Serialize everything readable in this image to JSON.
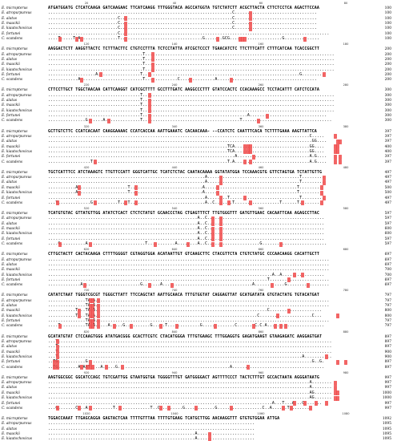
{
  "species": [
    "E. micropterus",
    "E. atropurpureus",
    "E. alatus",
    "E. maackii",
    "E. kiautschovicus",
    "E. fortunei",
    "C. scandens"
  ],
  "blocks": [
    {
      "ticks": [
        "20",
        "40",
        "60",
        "80"
      ],
      "rows": [
        {
          "seq": "ATGATGGATG CTCATCAAGA GATCAAGAAC TTCATCAAGG TTTGGGTACA AGCCATGGTA TGTCTATCTT ACGCTTACTA CTTCTCCTCA AGACTTCCAA",
          "num": "100"
        },
        {
          "seq": "..........................................................................C.................................",
          "num": "100"
        },
        {
          "seq": "............................C.............................................C.................................",
          "num": "100"
        },
        {
          "seq": "............................C.............................................C.................................",
          "num": "100"
        },
        {
          "seq": "............................C.............................................C.................................",
          "num": "100"
        },
        {
          "seq": "............................C....................................................................................",
          "num": "100"
        },
        {
          "seq": "....T.....T.A...............T.................................G.......GCG.....................G..............",
          "num": "100"
        }
      ]
    },
    {
      "ticks": [
        "120",
        "140",
        "160",
        "180"
      ],
      "rows": [
        {
          "seq": "AAGGACTCTT AAGGTTACTC TCTTTACTTC CTGTCCTTTA TCTCCTATTA ATCGCTCCCT TGAACATCTC TTCTTTCATT CTTTCATCAA TCACCGGCTT",
          "num": "200"
        },
        {
          "seq": "......................................T............................................................................",
          "num": "200"
        },
        {
          "seq": "......................................T............................................................................",
          "num": "200"
        },
        {
          "seq": "......................................T............................................................................",
          "num": "200"
        },
        {
          "seq": "......................................T............................................................................",
          "num": "200"
        },
        {
          "seq": "...................A.................T...............................................................G.........",
          "num": "200"
        },
        {
          "seq": "............A.........................T.............C..............A........................................",
          "num": "200"
        }
      ]
    },
    {
      "ticks": [
        "220",
        "240",
        "260",
        "280"
      ],
      "rows": [
        {
          "seq": "CTTCCTTGCT TGGCTAACAA CATTCAAGGT CATCGCTTTT GCCTTTGATC AAGGCCCTTT GTATCCACTC CCACAAAGCC TCCTACATTT CATCTCCATA",
          "num": "300"
        },
        {
          "seq": ".....................................T.............................................................................",
          "num": "300"
        },
        {
          "seq": ".....................................T.............................................................................",
          "num": "300"
        },
        {
          "seq": ".....................................T.............................................................................",
          "num": "300"
        },
        {
          "seq": ".....................................T.............................................................................",
          "num": "300"
        },
        {
          "seq": ".....................................T..........................................A...............................",
          "num": "300"
        },
        {
          "seq": "...............G......A..............T.......................................T....................................",
          "num": "300"
        }
      ]
    },
    {
      "ticks": [
        "320",
        "340",
        "360",
        "380"
      ],
      "rows": [
        {
          "seq": "GCTTGTCTTC CCATCACAAT CAAGGAAAAC CCATCACCAA AATTGAAATC CACAACAAA- --CCATCTC CAATTTCACA TCTTTTGAAA AAGTTATTCA",
          "num": "397"
        },
        {
          "seq": ".........................................................................................................C.....",
          "num": "397"
        },
        {
          "seq": "..........................................................................................................GG....",
          "num": "397"
        },
        {
          "seq": "........................................................................TCA..............................GG....",
          "num": "400"
        },
        {
          "seq": "........................................................................TCA..............................GG....",
          "num": "400"
        },
        {
          "seq": "...........................................................................A.............................A.G....",
          "num": "397"
        },
        {
          "seq": ".................T......................................................T.A..............................A.G....",
          "num": "397"
        }
      ]
    },
    {
      "ticks": [
        "420",
        "440",
        "460",
        "480"
      ],
      "rows": [
        {
          "seq": "TGCTCATTTCC ATCTAAAGTC TTGTTCCATT GGGTCATTGC TCATCTCTAC CAATACAAAA GGTATATGGA TCCAAACGTG GTTCTAGTGA TCTATTGTTG",
          "num": "497"
        },
        {
          "seq": "...............................................................A.....................................T.........",
          "num": "497"
        },
        {
          "seq": "...............................................................A.....................................T.........",
          "num": "497"
        },
        {
          "seq": "...........A....................T.............................A.....................................T.........",
          "num": "500"
        },
        {
          "seq": "...........A....................T.............................A.....................................T.........",
          "num": "500"
        },
        {
          "seq": "...............................................................A........T............................T.........",
          "num": "497"
        },
        {
          "seq": "...T.............G..........T...T..............................A..C.......T..................T......T.........",
          "num": "497"
        }
      ]
    },
    {
      "ticks": [
        "520",
        "540",
        "560",
        "580"
      ],
      "rows": [
        {
          "seq": "TCATGTGTAC GTTATGTTGG ATATCTCACT CTCTCTATGT GCAACCCTAG CTGAGTTTCT TTGTGGGTTT GATGTTGAAC CACAATTCAA AGAGCCTTAC",
          "num": "597"
        },
        {
          "seq": "............................................................A..C...............................................",
          "num": "597"
        },
        {
          "seq": "............................................................A..C...............................................",
          "num": "597"
        },
        {
          "seq": "............................................................A..C...............................................",
          "num": "600"
        },
        {
          "seq": "............................................................A..C...............................................",
          "num": "600"
        },
        {
          "seq": "............................................................A..C...............................................",
          "num": "597"
        },
        {
          "seq": "....G..........A.......................T...........A........A..C.....................G..........................",
          "num": "597"
        }
      ]
    },
    {
      "ticks": [
        "620",
        "640",
        "660",
        "680"
      ],
      "rows": [
        {
          "seq": "CTTGCTACTT CACTACAAGA CTTTTGGGGT CGTAGGTGGA ACATAATTGT GTCAAGCTTC CTACGTTCTA CTGTCTATGC CCCAACAAGG CACATTGCTT",
          "num": "697"
        },
        {
          "seq": ".................................................................................................................",
          "num": "697"
        },
        {
          "seq": ".................................................................................................................",
          "num": "697"
        },
        {
          "seq": ".................................................................................................................",
          "num": "700"
        },
        {
          "seq": "..........................................................................................A..A.................",
          "num": "700"
        },
        {
          "seq": "........................................................................................T........................",
          "num": "697"
        },
        {
          "seq": ".............A.......................G.......A....................................A............G.................",
          "num": "697"
        }
      ]
    },
    {
      "ticks": [
        "720",
        "740",
        "760",
        "780"
      ],
      "rows": [
        {
          "seq": "CATATCTAAT TGGGTCGCGT TGGGCTTATT TTCCAGCTAT AATTGCAACA TTTGTGGTAT CAGGAGTTAT GCATGATATA GTGTACTATG TGTACATGAT",
          "num": "797"
        },
        {
          "seq": "...............TA.A..............................................................................................",
          "num": "797"
        },
        {
          "seq": "...............TA.A..............................................................................................",
          "num": "797"
        },
        {
          "seq": "...........T...TA.A.....................................................................C.....................",
          "num": "800"
        },
        {
          "seq": "...........T...TA.A.................................................................C.....................C...",
          "num": "800"
        },
        {
          "seq": "...............TA.A..............................................................................................",
          "num": "797"
        },
        {
          "seq": "....T..........TA.A.....A.....G..........G.....T.............G.............C.......C.C.A.......................",
          "num": "797"
        }
      ]
    },
    {
      "ticks": [
        "820",
        "840",
        "860",
        "880"
      ],
      "rows": [
        {
          "seq": "GCATATGTAT CTCCAAGTGGG ATATGACGGG GCACTTCGTC CTACATGGGA TTTGTGAAGC TTTGGAGGTG GAGATGAAGT GTAAGAGATC AAGGAGTGAT",
          "num": "897"
        },
        {
          "seq": "...T..............................................................................................................",
          "num": "897"
        },
        {
          "seq": "...T..............................................................................................................",
          "num": "897"
        },
        {
          "seq": "...T..............................................................................................................",
          "num": "900"
        },
        {
          "seq": "...T..................................................................................................A...........",
          "num": "900"
        },
        {
          "seq": "..TG...........G..........................................................................................G..G.",
          "num": "897"
        },
        {
          "seq": "..TG........A.AAT....A.....G.............................................A.....................................",
          "num": "897"
        }
      ]
    },
    {
      "ticks": [
        "920",
        "940",
        "960",
        "980"
      ],
      "rows": [
        {
          "seq": "AAGTGGCGGC GGCATCCAGC TGTCGATTGG GTAATGGTGA TGGGGTTTGT GATGGGGACT AGTTTTCCCT TACTCTTTGT GCCACTAATA AGGGATAATG",
          "num": "997"
        },
        {
          "seq": ".........................................................................................................A........",
          "num": "997"
        },
        {
          "seq": ".........................................................................................................A........",
          "num": "997"
        },
        {
          "seq": ".........................................................................................................AG.......",
          "num": "1000"
        },
        {
          "seq": ".........................................................................................................AG.......",
          "num": "1000"
        },
        {
          "seq": "..........................................................................................A...T...A...G.......",
          "num": "997"
        },
        {
          "seq": "...G.......C...A..........T..............T..C.........G............G..................C..A......T.........",
          "num": "997"
        }
      ]
    },
    {
      "ticks": [
        "1020",
        "1040",
        "1060",
        "1080"
      ],
      "rows": [
        {
          "seq": "TGGACCAAAT TTGAGCAGGA GAGTACTCAA TTTTGTTTAA TTTTGTGAAG TCATGCTTGG AACAAGGTTT GTGTGTGGAA ATTGA",
          "num": "1092"
        },
        {
          "seq": "...................................................................................",
          "num": "1095"
        },
        {
          "seq": "...................................................................................",
          "num": "1095"
        },
        {
          "seq": "...........................................................A.......................",
          "num": "1095"
        },
        {
          "seq": "...........................................................A.......................",
          "num": "1095"
        },
        {
          "seq": "...........................................................A..............AG.......",
          "num": "1095"
        },
        {
          "seq": "......T.........T.........A..........A......G...A...........A....GA.AG......AGGGGGG",
          "num": "1093"
        }
      ]
    }
  ]
}
